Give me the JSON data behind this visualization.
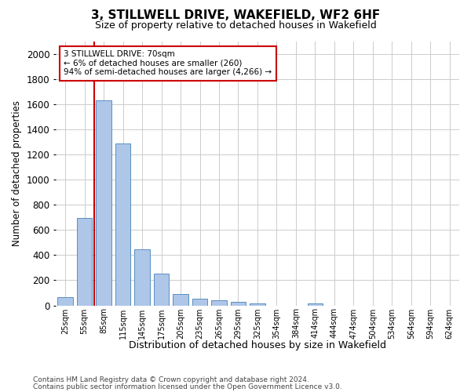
{
  "title": "3, STILLWELL DRIVE, WAKEFIELD, WF2 6HF",
  "subtitle": "Size of property relative to detached houses in Wakefield",
  "xlabel": "Distribution of detached houses by size in Wakefield",
  "ylabel": "Number of detached properties",
  "bar_color": "#aec6e8",
  "bar_edge_color": "#5a8fc2",
  "background_color": "#ffffff",
  "grid_color": "#cccccc",
  "annotation_box_color": "#cc0000",
  "vline_color": "#cc0000",
  "annotation_text": "3 STILLWELL DRIVE: 70sqm\n← 6% of detached houses are smaller (260)\n94% of semi-detached houses are larger (4,266) →",
  "categories": [
    "25sqm",
    "55sqm",
    "85sqm",
    "115sqm",
    "145sqm",
    "175sqm",
    "205sqm",
    "235sqm",
    "265sqm",
    "295sqm",
    "325sqm",
    "354sqm",
    "384sqm",
    "414sqm",
    "444sqm",
    "474sqm",
    "504sqm",
    "534sqm",
    "564sqm",
    "594sqm",
    "624sqm"
  ],
  "values": [
    65,
    695,
    1630,
    1285,
    445,
    255,
    88,
    52,
    38,
    28,
    18,
    0,
    0,
    18,
    0,
    0,
    0,
    0,
    0,
    0,
    0
  ],
  "ylim": [
    0,
    2100
  ],
  "yticks": [
    0,
    200,
    400,
    600,
    800,
    1000,
    1200,
    1400,
    1600,
    1800,
    2000
  ],
  "footer1": "Contains HM Land Registry data © Crown copyright and database right 2024.",
  "footer2": "Contains public sector information licensed under the Open Government Licence v3.0."
}
